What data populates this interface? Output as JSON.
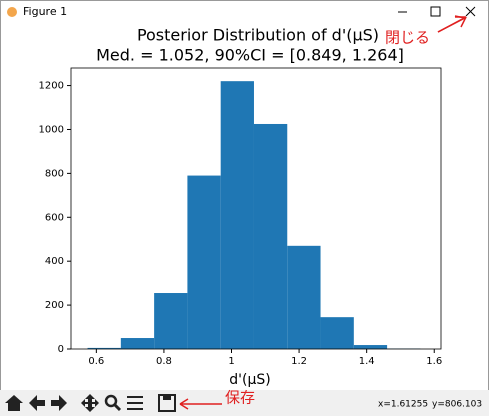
{
  "window": {
    "title": "Figure 1"
  },
  "chart_data": {
    "type": "histogram",
    "title": "Posterior Distribution of d'(μS)",
    "subtitle": "Med. = 1.052,   90%CI = [0.849, 1.264]",
    "x_label": "d'(μS)",
    "bins": [
      0.574,
      0.6725,
      0.771,
      0.8695,
      0.968,
      1.0665,
      1.165,
      1.2635,
      1.362,
      1.4605,
      1.559
    ],
    "values": [
      5,
      50,
      255,
      790,
      1220,
      1025,
      470,
      145,
      18,
      2
    ],
    "color": "#1f77b4",
    "xlim": [
      0.525,
      1.62
    ],
    "ylim": [
      0,
      1280
    ],
    "xticks": [
      0.6,
      0.8,
      1.0,
      1.2,
      1.4,
      1.6
    ],
    "yticks": [
      0,
      200,
      400,
      600,
      800,
      1000,
      1200
    ]
  },
  "toolbar": {
    "x_coord": "x=1.61255",
    "y_coord": "y=806.103"
  },
  "annotations": {
    "close": "閉じる",
    "save": "保存"
  }
}
